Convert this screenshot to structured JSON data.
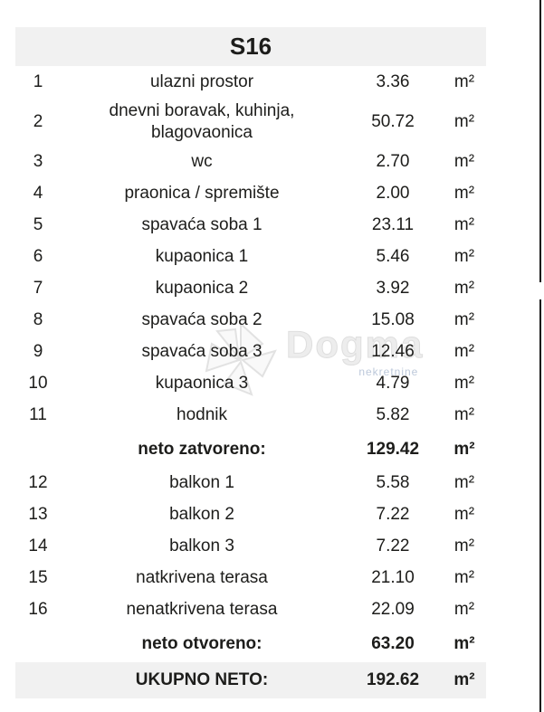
{
  "header": {
    "title": "S16"
  },
  "table": {
    "area_unit": "m²",
    "rows": [
      {
        "type": "item",
        "num": "1",
        "name": "ulazni prostor",
        "value": "3.36"
      },
      {
        "type": "item",
        "num": "2",
        "name": "dnevni boravak, kuhinja, blagovaonica",
        "value": "50.72"
      },
      {
        "type": "item",
        "num": "3",
        "name": "wc",
        "value": "2.70"
      },
      {
        "type": "item",
        "num": "4",
        "name": "praonica / spremište",
        "value": "2.00"
      },
      {
        "type": "item",
        "num": "5",
        "name": "spavaća soba 1",
        "value": "23.11"
      },
      {
        "type": "item",
        "num": "6",
        "name": "kupaonica 1",
        "value": "5.46"
      },
      {
        "type": "item",
        "num": "7",
        "name": "kupaonica 2",
        "value": "3.92"
      },
      {
        "type": "item",
        "num": "8",
        "name": "spavaća soba 2",
        "value": "15.08"
      },
      {
        "type": "item",
        "num": "9",
        "name": "spavaća soba 3",
        "value": "12.46"
      },
      {
        "type": "item",
        "num": "10",
        "name": "kupaonica 3",
        "value": "4.79"
      },
      {
        "type": "item",
        "num": "11",
        "name": "hodnik",
        "value": "5.82"
      },
      {
        "type": "subtotal",
        "num": "",
        "name": "neto zatvoreno:",
        "value": "129.42"
      },
      {
        "type": "item",
        "num": "12",
        "name": "balkon 1",
        "value": "5.58"
      },
      {
        "type": "item",
        "num": "13",
        "name": "balkon 2",
        "value": "7.22"
      },
      {
        "type": "item",
        "num": "14",
        "name": "balkon 3",
        "value": "7.22"
      },
      {
        "type": "item",
        "num": "15",
        "name": "natkrivena terasa",
        "value": "21.10"
      },
      {
        "type": "item",
        "num": "16",
        "name": "nenatkrivena terasa",
        "value": "22.09"
      },
      {
        "type": "subtotal",
        "num": "",
        "name": "neto otvoreno:",
        "value": "63.20"
      },
      {
        "type": "total",
        "num": "",
        "name": "UKUPNO NETO:",
        "value": "192.62"
      }
    ]
  },
  "watermark": {
    "brand": "Dogma",
    "sub": "nekretnine"
  },
  "colors": {
    "highlight_bg": "#f1f1f1",
    "text": "#1d1d1b",
    "edge_line": "#141414",
    "watermark_gray": "#ededed",
    "watermark_blue": "#bcc8da"
  }
}
